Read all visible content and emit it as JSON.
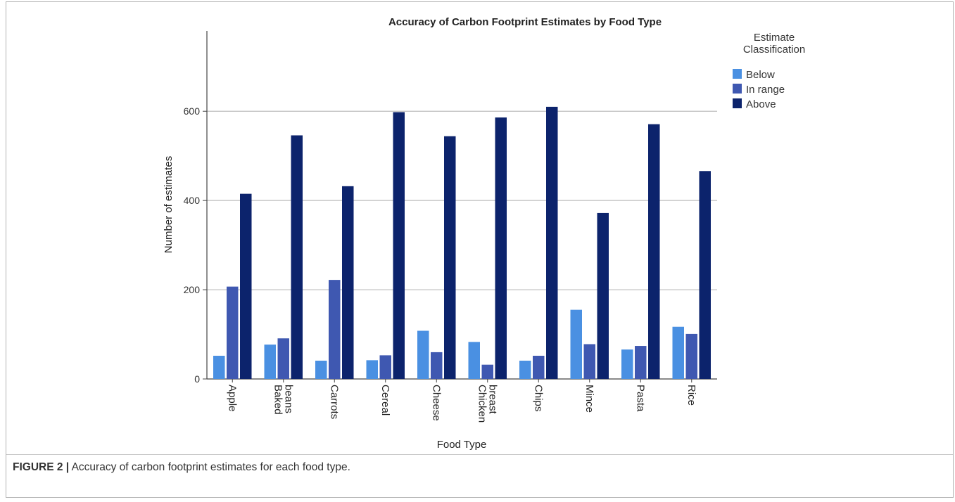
{
  "chart_data": {
    "type": "bar",
    "title": "Accuracy of Carbon Footprint Estimates by Food Type",
    "xlabel": "Food Type",
    "ylabel": "Number of estimates",
    "ylim": [
      0,
      780
    ],
    "yticks": [
      0,
      200,
      400,
      600
    ],
    "grid": true,
    "legend_position": "top-right",
    "legend_title": "Estimate Classification",
    "categories": [
      [
        "Apple"
      ],
      [
        "Baked",
        "beans"
      ],
      [
        "Carrots"
      ],
      [
        "Cereal"
      ],
      [
        "Cheese"
      ],
      [
        "Chicken",
        "breast"
      ],
      [
        "Chips"
      ],
      [
        "Mince"
      ],
      [
        "Pasta"
      ],
      [
        "Rice"
      ]
    ],
    "series": [
      {
        "name": "Below",
        "color": "#4a90e2",
        "values": [
          52,
          77,
          41,
          42,
          108,
          83,
          41,
          155,
          66,
          117
        ]
      },
      {
        "name": "In range",
        "color": "#3f58b1",
        "values": [
          207,
          91,
          222,
          53,
          60,
          32,
          52,
          78,
          74,
          101
        ]
      },
      {
        "name": "Above",
        "color": "#0c236c",
        "values": [
          415,
          546,
          432,
          598,
          544,
          586,
          610,
          372,
          571,
          466
        ]
      }
    ]
  },
  "caption": {
    "label": "FIGURE 2 |",
    "text": " Accuracy of carbon footprint estimates for each food type."
  }
}
